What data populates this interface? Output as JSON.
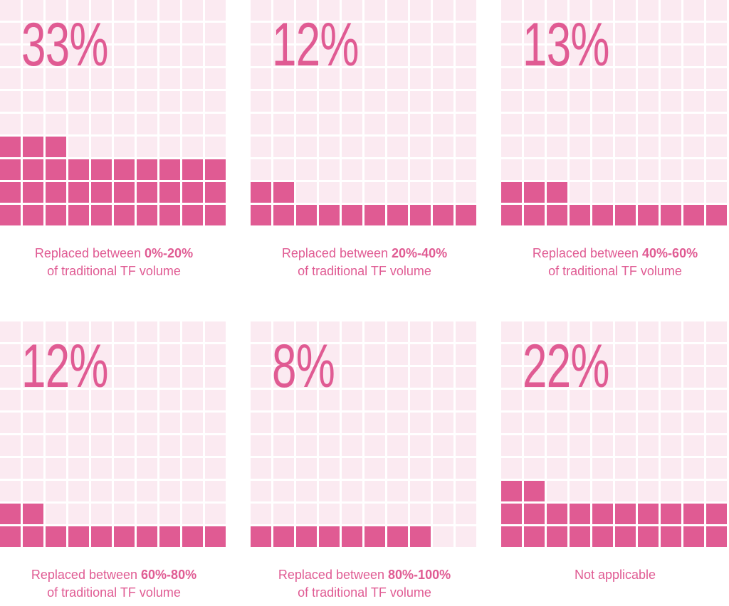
{
  "colors": {
    "filled": "#e05b93",
    "empty": "#fbeaf1",
    "text": "#e05b93"
  },
  "chart_data": [
    {
      "type": "waffle",
      "value_label": "33%",
      "value": 33,
      "caption_prefix": "Replaced between",
      "caption_range": "0%-20%",
      "caption_line2": "of traditional TF volume"
    },
    {
      "type": "waffle",
      "value_label": "12%",
      "value": 12,
      "caption_prefix": "Replaced between",
      "caption_range": "20%-40%",
      "caption_line2": "of traditional TF volume"
    },
    {
      "type": "waffle",
      "value_label": "13%",
      "value": 13,
      "caption_prefix": "Replaced between",
      "caption_range": "40%-60%",
      "caption_line2": "of traditional TF volume"
    },
    {
      "type": "waffle",
      "value_label": "12%",
      "value": 12,
      "caption_prefix": "Replaced between",
      "caption_range": "60%-80%",
      "caption_line2": "of traditional TF volume"
    },
    {
      "type": "waffle",
      "value_label": "8%",
      "value": 8,
      "caption_prefix": "Replaced between",
      "caption_range": "80%-100%",
      "caption_line2": "of traditional TF volume"
    },
    {
      "type": "waffle",
      "value_label": "22%",
      "value": 22,
      "caption_prefix": "Not applicable",
      "caption_range": "",
      "caption_line2": ""
    }
  ]
}
